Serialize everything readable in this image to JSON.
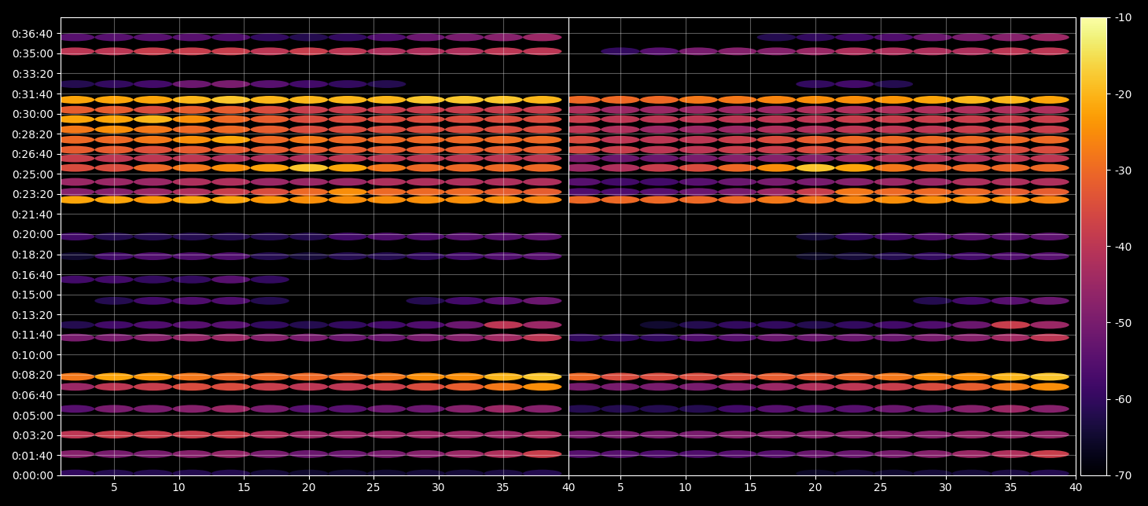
{
  "chart_data": [
    {
      "type": "heatmap",
      "x": [
        2,
        5,
        8,
        11,
        14,
        17,
        20,
        23,
        26,
        29,
        32,
        35,
        38
      ],
      "y": [
        8,
        105,
        202,
        330,
        440,
        490,
        685,
        748,
        868,
        974,
        1090,
        1188,
        1371,
        1410,
        1460,
        1530,
        1577,
        1620,
        1670,
        1721,
        1772,
        1819,
        1869,
        1947,
        2110,
        2180
      ],
      "cells": [
        [
          -60,
          -62,
          -62,
          -62,
          -62,
          -64,
          -65,
          -65,
          -65,
          -64,
          -64,
          -63,
          -62
        ],
        [
          -48,
          -50,
          -50,
          -48,
          -46,
          -50,
          -52,
          -52,
          -50,
          -48,
          -45,
          -42,
          -38
        ],
        [
          -40,
          -38,
          -38,
          -38,
          -38,
          -42,
          -45,
          -45,
          -45,
          -45,
          -45,
          -45,
          -43
        ],
        [
          -55,
          -50,
          -50,
          -48,
          -45,
          -50,
          -55,
          -55,
          -52,
          -52,
          -48,
          -45,
          -48
        ],
        [
          -45,
          -40,
          -38,
          -35,
          -35,
          -38,
          -40,
          -40,
          -38,
          -35,
          -32,
          -28,
          -25
        ],
        [
          -28,
          -22,
          -24,
          -28,
          -30,
          -30,
          -30,
          -30,
          -28,
          -25,
          -25,
          -20,
          -18
        ],
        [
          -50,
          -50,
          -48,
          -46,
          -45,
          -48,
          -50,
          -52,
          -52,
          -50,
          -48,
          -44,
          -40
        ],
        [
          -62,
          -58,
          -56,
          -55,
          -55,
          -60,
          -62,
          -60,
          -58,
          -56,
          -52,
          -40,
          -45
        ],
        [
          null,
          -62,
          -58,
          -56,
          -56,
          -62,
          null,
          null,
          null,
          -62,
          -58,
          -55,
          -52
        ],
        [
          -58,
          -58,
          -60,
          -60,
          -55,
          -60,
          null,
          null,
          null,
          null,
          null,
          null,
          null
        ],
        [
          -65,
          -58,
          -56,
          -56,
          -56,
          -62,
          -64,
          -62,
          -62,
          -60,
          -58,
          -56,
          -55
        ],
        [
          -58,
          -62,
          -62,
          -62,
          -62,
          -62,
          -62,
          -58,
          -56,
          -56,
          -55,
          -55,
          -54
        ],
        [
          -22,
          -22,
          -24,
          -22,
          -22,
          -24,
          -25,
          -25,
          -25,
          -25,
          -25,
          -25,
          -26
        ],
        [
          -48,
          -48,
          -45,
          -42,
          -38,
          -35,
          -30,
          -25,
          -30,
          -30,
          -30,
          -32,
          -32
        ],
        [
          -45,
          -45,
          -45,
          -42,
          -42,
          -45,
          -45,
          -45,
          -42,
          -42,
          -42,
          -42,
          -42
        ],
        [
          -35,
          -35,
          -30,
          -28,
          -25,
          -22,
          -18,
          -22,
          -28,
          -30,
          -30,
          -30,
          -30
        ],
        [
          -38,
          -40,
          -40,
          -40,
          -42,
          -42,
          -42,
          -40,
          -40,
          -40,
          -40,
          -40,
          -40
        ],
        [
          -32,
          -32,
          -34,
          -32,
          -32,
          -32,
          -32,
          -32,
          -32,
          -32,
          -32,
          -32,
          -32
        ],
        [
          -30,
          -30,
          -28,
          -25,
          -22,
          -30,
          -28,
          -30,
          -30,
          -30,
          -30,
          -30,
          -30
        ],
        [
          -28,
          -25,
          -28,
          -30,
          -30,
          -32,
          -35,
          -35,
          -35,
          -35,
          -35,
          -35,
          -35
        ],
        [
          -22,
          -22,
          -20,
          -25,
          -30,
          -32,
          -35,
          -35,
          -35,
          -35,
          -35,
          -35,
          -35
        ],
        [
          -32,
          -32,
          -35,
          -32,
          -32,
          -35,
          -38,
          -38,
          -38,
          -38,
          -38,
          -38,
          -38
        ],
        [
          -22,
          -22,
          -22,
          -20,
          -18,
          -20,
          -20,
          -20,
          -20,
          -18,
          -18,
          -18,
          -20
        ],
        [
          -62,
          -60,
          -58,
          -52,
          -50,
          -55,
          -58,
          -60,
          -62,
          null,
          null,
          null,
          null
        ],
        [
          -40,
          -40,
          -38,
          -38,
          -38,
          -40,
          -38,
          -40,
          -42,
          -42,
          -42,
          -40,
          -40
        ],
        [
          -55,
          -55,
          -55,
          -55,
          -56,
          -60,
          -62,
          -60,
          -56,
          -52,
          -50,
          -48,
          -45
        ]
      ],
      "xlim": [
        0.9,
        40
      ],
      "xticks": [
        5,
        10,
        15,
        20,
        25,
        30,
        35,
        40
      ],
      "ylim": [
        0,
        2280
      ],
      "yticks": [
        {
          "value": 0,
          "label": "0:00:00"
        },
        {
          "value": 100,
          "label": "0:01:40"
        },
        {
          "value": 200,
          "label": "0:03:20"
        },
        {
          "value": 300,
          "label": "0:05:00"
        },
        {
          "value": 400,
          "label": "0:06:40"
        },
        {
          "value": 500,
          "label": "0:08:20"
        },
        {
          "value": 600,
          "label": "0:10:00"
        },
        {
          "value": 700,
          "label": "0:11:40"
        },
        {
          "value": 800,
          "label": "0:13:20"
        },
        {
          "value": 900,
          "label": "0:15:00"
        },
        {
          "value": 1000,
          "label": "0:16:40"
        },
        {
          "value": 1100,
          "label": "0:18:20"
        },
        {
          "value": 1200,
          "label": "0:20:00"
        },
        {
          "value": 1300,
          "label": "0:21:40"
        },
        {
          "value": 1400,
          "label": "0:23:20"
        },
        {
          "value": 1500,
          "label": "0:25:00"
        },
        {
          "value": 1600,
          "label": "0:26:40"
        },
        {
          "value": 1700,
          "label": "0:28:20"
        },
        {
          "value": 1800,
          "label": "0:30:00"
        },
        {
          "value": 1900,
          "label": "0:31:40"
        },
        {
          "value": 2000,
          "label": "0:33:20"
        },
        {
          "value": 2100,
          "label": "0:35:00"
        },
        {
          "value": 2200,
          "label": "0:36:40"
        }
      ],
      "grid": true
    },
    {
      "type": "heatmap",
      "x": [
        2,
        5,
        8,
        11,
        14,
        17,
        20,
        23,
        26,
        29,
        32,
        35,
        38
      ],
      "y": [
        8,
        105,
        202,
        330,
        440,
        490,
        685,
        748,
        868,
        974,
        1090,
        1188,
        1371,
        1410,
        1460,
        1530,
        1577,
        1620,
        1670,
        1721,
        1772,
        1819,
        1869,
        1947,
        2110,
        2180
      ],
      "cells": [
        [
          null,
          null,
          null,
          null,
          null,
          null,
          -66,
          -65,
          -65,
          -64,
          -64,
          -63,
          -62
        ],
        [
          -55,
          -55,
          -56,
          -56,
          -55,
          -55,
          -52,
          -52,
          -50,
          -48,
          -45,
          -42,
          -38
        ],
        [
          -50,
          -50,
          -50,
          -50,
          -48,
          -48,
          -48,
          -48,
          -48,
          -48,
          -46,
          -46,
          -46
        ],
        [
          -62,
          -62,
          -62,
          -62,
          -58,
          -55,
          -55,
          -55,
          -52,
          -52,
          -48,
          -45,
          -48
        ],
        [
          -50,
          -50,
          -50,
          -50,
          -48,
          -45,
          -42,
          -40,
          -38,
          -35,
          -32,
          -28,
          -25
        ],
        [
          -30,
          -35,
          -35,
          -35,
          -34,
          -32,
          -32,
          -30,
          -28,
          -25,
          -25,
          -20,
          -18
        ],
        [
          -60,
          -60,
          -60,
          -56,
          -55,
          -52,
          -52,
          -52,
          -52,
          -50,
          -48,
          -44,
          -40
        ],
        [
          null,
          null,
          -65,
          -62,
          -60,
          -60,
          -62,
          -60,
          -58,
          -56,
          -52,
          -38,
          -45
        ],
        [
          null,
          null,
          null,
          null,
          null,
          null,
          null,
          null,
          null,
          -62,
          -58,
          -55,
          -52
        ],
        [
          null,
          null,
          null,
          null,
          null,
          null,
          null,
          null,
          null,
          null,
          null,
          null,
          null
        ],
        [
          null,
          null,
          null,
          null,
          null,
          null,
          -66,
          -64,
          -62,
          -60,
          -58,
          -56,
          -55
        ],
        [
          null,
          null,
          null,
          null,
          null,
          null,
          -64,
          -60,
          -58,
          -56,
          -55,
          -55,
          -54
        ],
        [
          -30,
          -30,
          -30,
          -30,
          -30,
          -28,
          -28,
          -26,
          -25,
          -25,
          -25,
          -25,
          -26
        ],
        [
          -56,
          -56,
          -55,
          -52,
          -50,
          -45,
          -38,
          -28,
          -30,
          -30,
          -30,
          -32,
          -32
        ],
        [
          -55,
          -58,
          -58,
          -55,
          -52,
          -50,
          -50,
          -48,
          -45,
          -45,
          -42,
          -42,
          -42
        ],
        [
          -45,
          -42,
          -38,
          -35,
          -30,
          -25,
          -18,
          -22,
          -28,
          -30,
          -30,
          -30,
          -30
        ],
        [
          -50,
          -52,
          -52,
          -50,
          -48,
          -48,
          -48,
          -45,
          -42,
          -42,
          -42,
          -40,
          -40
        ],
        [
          -35,
          -38,
          -40,
          -40,
          -38,
          -38,
          -35,
          -35,
          -35,
          -35,
          -35,
          -35,
          -35
        ],
        [
          -35,
          -40,
          -40,
          -40,
          -38,
          -35,
          -32,
          -30,
          -30,
          -30,
          -30,
          -30,
          -30
        ],
        [
          -40,
          -42,
          -45,
          -45,
          -45,
          -42,
          -42,
          -40,
          -40,
          -40,
          -38,
          -38,
          -38
        ],
        [
          -38,
          -40,
          -40,
          -40,
          -40,
          -40,
          -40,
          -38,
          -38,
          -38,
          -38,
          -38,
          -38
        ],
        [
          -42,
          -45,
          -45,
          -45,
          -45,
          -45,
          -42,
          -42,
          -42,
          -42,
          -42,
          -42,
          -42
        ],
        [
          -30,
          -30,
          -30,
          -28,
          -28,
          -26,
          -25,
          -25,
          -24,
          -22,
          -20,
          -20,
          -22
        ],
        [
          null,
          null,
          null,
          null,
          null,
          null,
          -60,
          -58,
          -62,
          null,
          null,
          null,
          null
        ],
        [
          null,
          -60,
          -55,
          -50,
          -48,
          -48,
          -45,
          -42,
          -42,
          -42,
          -42,
          -40,
          -40
        ],
        [
          null,
          null,
          null,
          null,
          null,
          -62,
          -60,
          -58,
          -56,
          -52,
          -50,
          -48,
          -45
        ]
      ],
      "xlim": [
        1,
        40
      ],
      "xticks": [
        5,
        10,
        15,
        20,
        25,
        30,
        35,
        40
      ],
      "ylim": [
        0,
        2280
      ],
      "yticks": [
        0,
        100,
        200,
        300,
        400,
        500,
        600,
        700,
        800,
        900,
        1000,
        1100,
        1200,
        1300,
        1400,
        1500,
        1600,
        1700,
        1800,
        1900,
        2000,
        2100,
        2200
      ],
      "tick_labels": "x",
      "grid": true,
      "colorbar": {
        "range": [
          -70,
          -10
        ],
        "ticks": [
          -70,
          -60,
          -50,
          -40,
          -30,
          -20,
          -10
        ]
      }
    }
  ]
}
